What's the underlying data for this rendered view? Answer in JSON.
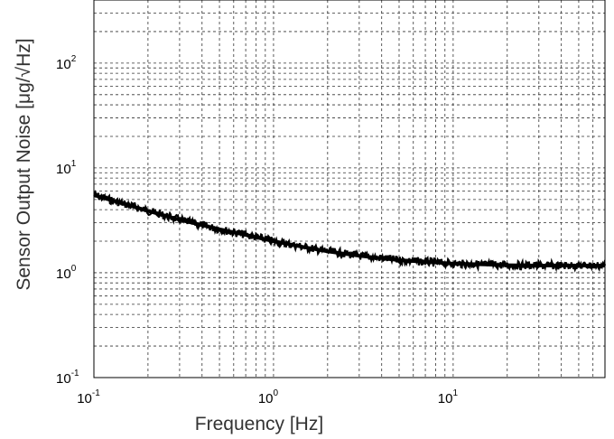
{
  "chart_data": {
    "type": "line",
    "title": "",
    "xlabel": "Frequency [Hz]",
    "ylabel": "Sensor Output Noise [μg/√Hz]",
    "xscale": "log",
    "yscale": "log",
    "xlim": [
      0.1,
      70
    ],
    "ylim": [
      0.1,
      400
    ],
    "grid": "on",
    "x_tick_labels": [
      {
        "base": "10",
        "exp": "-1"
      },
      {
        "base": "10",
        "exp": "0"
      },
      {
        "base": "10",
        "exp": "1"
      }
    ],
    "y_tick_labels": [
      {
        "base": "10",
        "exp": "-1"
      },
      {
        "base": "10",
        "exp": "0"
      },
      {
        "base": "10",
        "exp": "1"
      },
      {
        "base": "10",
        "exp": "2"
      }
    ],
    "series": [
      {
        "color": "#000000",
        "x": [
          0.1,
          0.15,
          0.2,
          0.3,
          0.5,
          0.7,
          1.0,
          1.5,
          2,
          3,
          5,
          7,
          10,
          15,
          20,
          30,
          50,
          70
        ],
        "y": [
          5.5,
          4.5,
          3.9,
          3.2,
          2.6,
          2.3,
          2.0,
          1.75,
          1.6,
          1.45,
          1.32,
          1.27,
          1.22,
          1.2,
          1.18,
          1.17,
          1.17,
          1.17
        ]
      }
    ]
  }
}
